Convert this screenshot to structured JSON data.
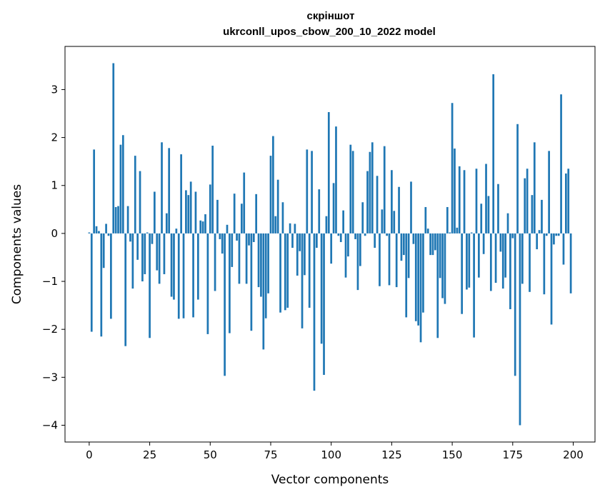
{
  "chart_data": {
    "type": "bar",
    "title_lines": [
      "скріншот",
      "ukrconll_upos_cbow_200_10_2022 model"
    ],
    "xlabel": "Vector components",
    "ylabel": "Components values",
    "xlim": [
      -10,
      209
    ],
    "ylim": [
      -4.35,
      3.9
    ],
    "x_ticks": [
      0,
      25,
      50,
      75,
      100,
      125,
      150,
      175,
      200
    ],
    "y_ticks": [
      -4,
      -3,
      -2,
      -1,
      0,
      1,
      2,
      3
    ],
    "bar_color": "#1f77b4",
    "grid": false,
    "values": [
      0.02,
      -2.05,
      1.75,
      0.15,
      0.05,
      -2.15,
      -0.72,
      0.2,
      -0.05,
      -1.78,
      3.55,
      0.55,
      0.57,
      1.85,
      2.05,
      -2.35,
      0.57,
      -0.17,
      -1.15,
      1.62,
      -0.55,
      1.3,
      -1.0,
      -0.85,
      0.02,
      -2.18,
      -0.22,
      0.87,
      -0.77,
      -1.05,
      1.9,
      -0.85,
      0.42,
      1.78,
      -1.32,
      -1.38,
      0.1,
      -1.78,
      1.65,
      -1.77,
      0.9,
      0.8,
      1.08,
      -1.75,
      0.87,
      -1.38,
      0.27,
      0.25,
      0.4,
      -2.1,
      1.02,
      1.83,
      -1.2,
      0.7,
      -0.12,
      -0.42,
      -2.97,
      0.18,
      -2.08,
      -0.7,
      0.83,
      -0.15,
      -1.05,
      0.62,
      1.27,
      -1.05,
      -0.25,
      -2.03,
      -0.18,
      0.82,
      -1.12,
      -1.32,
      -2.42,
      -1.77,
      -1.25,
      1.62,
      2.03,
      0.36,
      1.12,
      -1.65,
      0.65,
      -1.6,
      -1.55,
      0.21,
      -0.3,
      0.2,
      -0.88,
      -0.37,
      -1.98,
      -0.87,
      1.75,
      -1.55,
      1.72,
      -3.28,
      -0.3,
      0.92,
      -2.3,
      -2.95,
      0.36,
      2.53,
      -0.63,
      1.05,
      2.23,
      -0.05,
      -0.18,
      0.48,
      -0.92,
      -0.48,
      1.85,
      1.72,
      -0.12,
      -1.18,
      -0.68,
      0.65,
      -0.05,
      1.3,
      1.7,
      1.9,
      -0.3,
      1.2,
      -1.1,
      0.5,
      1.82,
      -0.05,
      -1.08,
      1.32,
      0.47,
      -1.12,
      0.97,
      -0.57,
      -0.45,
      -1.75,
      -0.93,
      1.08,
      -0.22,
      -1.83,
      -1.92,
      -2.27,
      -1.65,
      0.55,
      0.1,
      -0.45,
      -0.45,
      -0.35,
      -2.18,
      -0.93,
      -1.35,
      -1.47,
      0.55,
      0.02,
      2.72,
      1.77,
      0.12,
      1.4,
      -1.68,
      1.32,
      -1.17,
      -1.13,
      0.02,
      -2.17,
      1.35,
      -0.92,
      0.62,
      -0.43,
      1.45,
      0.78,
      -1.2,
      3.32,
      -1.03,
      1.03,
      -0.38,
      -1.15,
      -0.92,
      0.42,
      -1.58,
      -0.1,
      -2.97,
      2.28,
      -4.0,
      -1.05,
      1.15,
      1.35,
      -1.22,
      0.8,
      1.9,
      -0.33,
      0.07,
      0.7,
      -1.27,
      -0.05,
      1.72,
      -1.9,
      -0.23,
      -0.05,
      -0.05,
      2.9,
      -0.65,
      1.25,
      1.35,
      -1.25
    ]
  }
}
